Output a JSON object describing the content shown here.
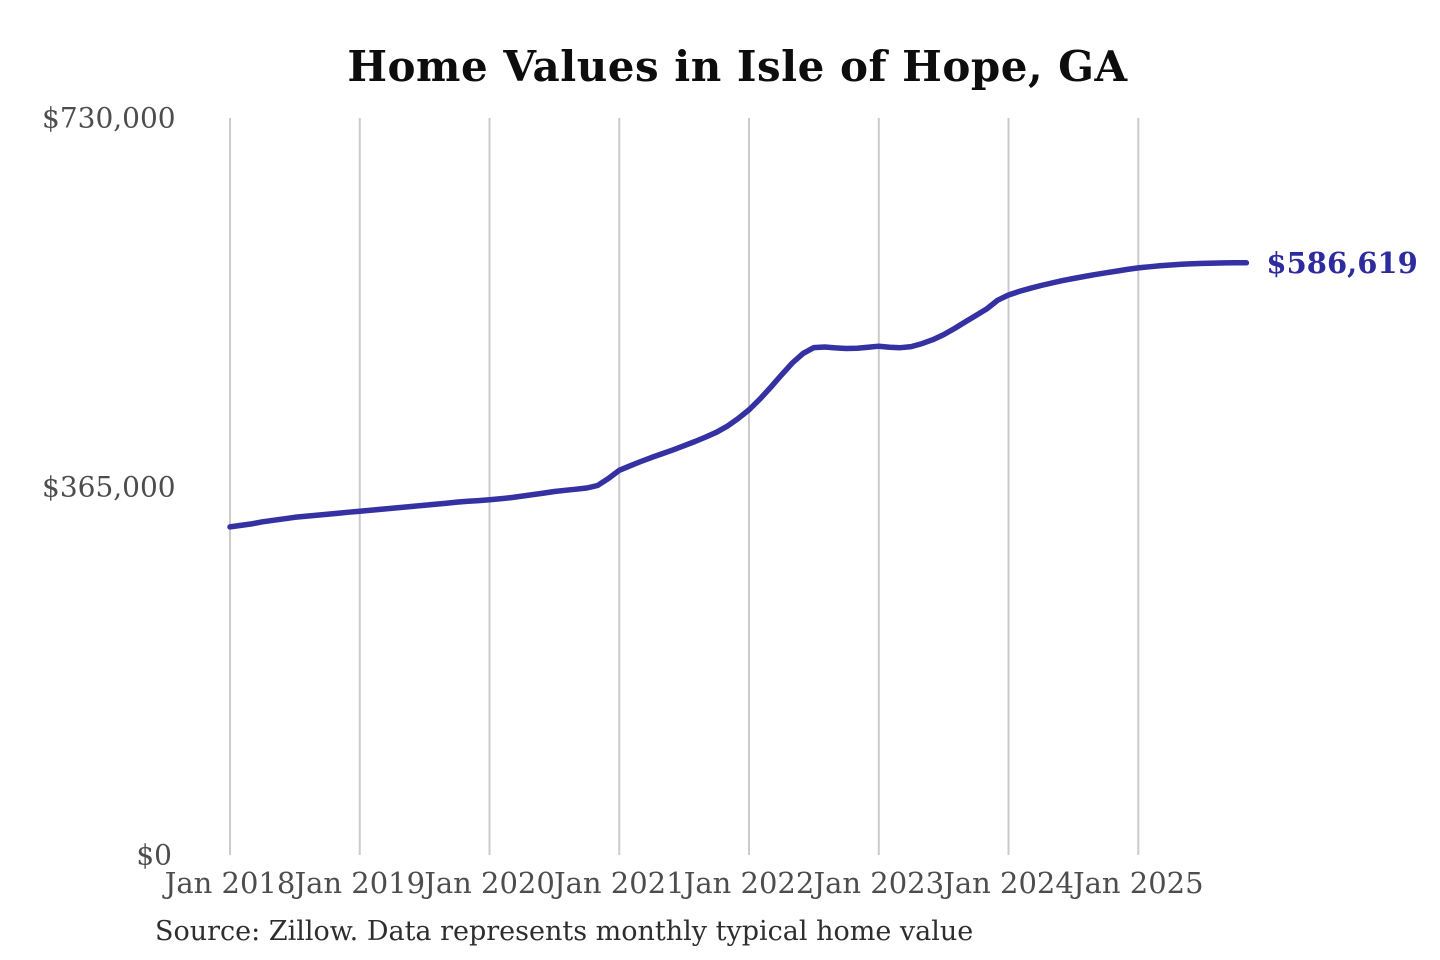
{
  "page": {
    "background": "#ffffff"
  },
  "chart_data": {
    "type": "line",
    "title": "Home Values in Isle of Hope, GA",
    "source_note": "Source: Zillow. Data represents monthly typical home value",
    "end_label": "$586,619",
    "end_value": 586619,
    "line_color": "#3531a3",
    "end_label_color": "#2e2b9f",
    "grid_color": "#cbcbcb",
    "tick_label_color": "#4d4d4d",
    "grid": "vertical-only",
    "legend": "none",
    "ylim": [
      0,
      730000
    ],
    "yticks": [
      {
        "value": 0,
        "label": "$0"
      },
      {
        "value": 365000,
        "label": "$365,000"
      },
      {
        "value": 730000,
        "label": "$730,000"
      }
    ],
    "x_unit": "month",
    "x_start": "Jan 2018",
    "x_end": "Nov 2025",
    "xticks": [
      {
        "month_index": 0,
        "label": "Jan 2018"
      },
      {
        "month_index": 12,
        "label": "Jan 2019"
      },
      {
        "month_index": 24,
        "label": "Jan 2020"
      },
      {
        "month_index": 36,
        "label": "Jan 2021"
      },
      {
        "month_index": 48,
        "label": "Jan 2022"
      },
      {
        "month_index": 60,
        "label": "Jan 2023"
      },
      {
        "month_index": 72,
        "label": "Jan 2024"
      },
      {
        "month_index": 84,
        "label": "Jan 2025"
      }
    ],
    "series": [
      {
        "name": "Monthly typical home value",
        "values": [
          325000,
          326500,
          328000,
          330000,
          331500,
          333000,
          334500,
          335500,
          336500,
          337500,
          338500,
          339500,
          340500,
          341500,
          342500,
          343500,
          344500,
          345500,
          346500,
          347500,
          348500,
          349500,
          350300,
          351000,
          351800,
          352800,
          354000,
          355500,
          357000,
          358500,
          360000,
          361200,
          362300,
          363500,
          366000,
          373000,
          381000,
          385500,
          389800,
          393800,
          397600,
          401400,
          405400,
          409600,
          414000,
          418800,
          424800,
          432400,
          441000,
          451500,
          463200,
          475500,
          487300,
          496800,
          502600,
          503200,
          502300,
          501700,
          502000,
          502900,
          504000,
          503000,
          502500,
          503600,
          506500,
          510400,
          515500,
          521500,
          528000,
          534500,
          541000,
          549500,
          554700,
          558200,
          561300,
          564100,
          566600,
          568900,
          571000,
          573000,
          574900,
          576700,
          578400,
          580000,
          581500,
          582600,
          583600,
          584400,
          585100,
          585600,
          586000,
          586300,
          586500,
          586560,
          586619
        ]
      }
    ]
  }
}
